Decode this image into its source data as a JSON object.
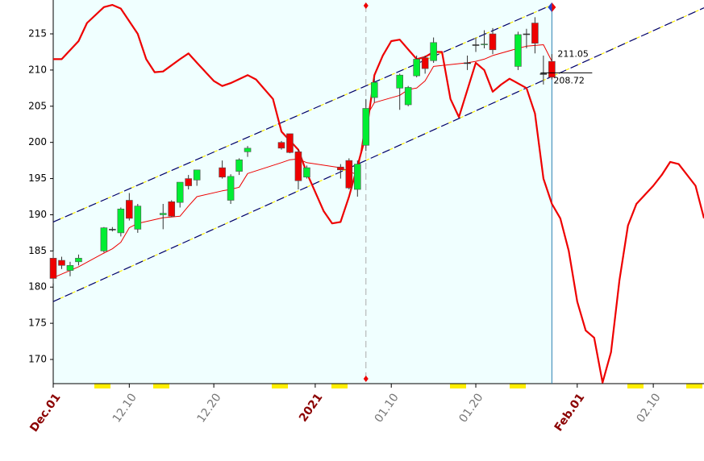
{
  "chart_data": {
    "type": "candlestick",
    "x": [
      "2020-12-01",
      "2020-12-02",
      "2020-12-03",
      "2020-12-04",
      "2020-12-07",
      "2020-12-08",
      "2020-12-09",
      "2020-12-10",
      "2020-12-11",
      "2020-12-14",
      "2020-12-15",
      "2020-12-16",
      "2020-12-17",
      "2020-12-18",
      "2020-12-21",
      "2020-12-22",
      "2020-12-23",
      "2020-12-24",
      "2020-12-28",
      "2020-12-29",
      "2020-12-30",
      "2020-12-31",
      "2021-01-04",
      "2021-01-05",
      "2021-01-06",
      "2021-01-07",
      "2021-01-08",
      "2021-01-11",
      "2021-01-12",
      "2021-01-13",
      "2021-01-14",
      "2021-01-15",
      "2021-01-19",
      "2021-01-20",
      "2021-01-21",
      "2021-01-22",
      "2021-01-25",
      "2021-01-26",
      "2021-01-27",
      "2021-01-28",
      "2021-01-29"
    ],
    "open": [
      184,
      183.7,
      182.3,
      183.5,
      185,
      188,
      187.5,
      192,
      188,
      190,
      191.8,
      191.7,
      195,
      194.8,
      196.5,
      192,
      196,
      198.7,
      200,
      201.2,
      198.7,
      195.2,
      196.6,
      197.5,
      193.5,
      199.6,
      206.2,
      207.5,
      205.2,
      209.2,
      211.7,
      211.3,
      211,
      213.5,
      213.5,
      215,
      210.5,
      215,
      216.5,
      209.5,
      211.2
    ],
    "high": [
      185,
      184.2,
      183.5,
      184.5,
      188.3,
      188.3,
      191,
      193,
      191.5,
      191.5,
      192,
      194.5,
      195.5,
      196.2,
      197.5,
      195.6,
      197.8,
      199.5,
      200.2,
      201.2,
      199,
      196.8,
      197,
      197.8,
      197.5,
      206,
      208.8,
      209.5,
      207.8,
      212,
      212,
      214.5,
      212,
      214.5,
      215.5,
      215.8,
      215.3,
      215.7,
      217.3,
      212,
      212.2
    ],
    "low": [
      180.5,
      182.5,
      181.5,
      183,
      184.8,
      187.7,
      187,
      189.2,
      187.5,
      188,
      189.7,
      191,
      193.5,
      194,
      195,
      191.5,
      195.5,
      198,
      199,
      198.5,
      193.5,
      195,
      195,
      193.5,
      192.5,
      198.8,
      205.5,
      204.5,
      205,
      209,
      209.5,
      211,
      210,
      212.5,
      213,
      212.2,
      210,
      213,
      212.3,
      208,
      208.7
    ],
    "close": [
      181.2,
      183,
      183,
      184,
      188.2,
      188,
      190.8,
      189.5,
      191.2,
      190.2,
      189.8,
      194.5,
      194,
      196.2,
      195.2,
      195.3,
      197.6,
      199.2,
      199.2,
      198.6,
      194.7,
      196.5,
      196.2,
      193.7,
      197,
      204.7,
      208.3,
      209.3,
      207.6,
      211.5,
      210.2,
      213.8,
      211,
      213.5,
      213.6,
      212.8,
      214.9,
      215,
      213.7,
      209.5,
      209
    ],
    "up_color": "#00ee33",
    "down_color": "#ee0000",
    "lines": [
      {
        "color": "#ee0000",
        "width": 1,
        "x": [
          "2020-12-01",
          "2020-12-02",
          "2020-12-03",
          "2020-12-04",
          "2020-12-07",
          "2020-12-08",
          "2020-12-09",
          "2020-12-10",
          "2020-12-11",
          "2020-12-14",
          "2020-12-15",
          "2020-12-16",
          "2020-12-17",
          "2020-12-18",
          "2020-12-21",
          "2020-12-22",
          "2020-12-23",
          "2020-12-24",
          "2020-12-28",
          "2020-12-29",
          "2020-12-30",
          "2020-12-31",
          "2021-01-04",
          "2021-01-05",
          "2021-01-06",
          "2021-01-07",
          "2021-01-08",
          "2021-01-11",
          "2021-01-12",
          "2021-01-13",
          "2021-01-14",
          "2021-01-15",
          "2021-01-19",
          "2021-01-20",
          "2021-01-21",
          "2021-01-22",
          "2021-01-25",
          "2021-01-26",
          "2021-01-27",
          "2021-01-28",
          "2021-01-29"
        ],
        "values": [
          181.3,
          181.8,
          182.3,
          182.8,
          184.7,
          185.3,
          186.2,
          188.2,
          188.8,
          189.6,
          189.7,
          189.8,
          191.2,
          192.5,
          193.3,
          193.5,
          193.8,
          195.7,
          197.2,
          197.6,
          197.7,
          197.2,
          196.5,
          196,
          195.5,
          203.5,
          205.5,
          206.5,
          207.3,
          207.5,
          208.5,
          210.5,
          211,
          211.2,
          211.5,
          212,
          213,
          213.3,
          213.4,
          213.5,
          211.2
        ]
      },
      {
        "color": "#ee0000",
        "width": 2.2,
        "x": [
          "2020-12-01",
          "2020-12-02",
          "2020-12-04",
          "2020-12-05",
          "2020-12-07",
          "2020-12-08",
          "2020-12-09",
          "2020-12-11",
          "2020-12-12",
          "2020-12-13",
          "2020-12-14",
          "2020-12-16",
          "2020-12-17",
          "2020-12-18",
          "2020-12-20",
          "2020-12-21",
          "2020-12-22",
          "2020-12-24",
          "2020-12-25",
          "2020-12-27",
          "2020-12-28",
          "2020-12-30",
          "2020-12-31",
          "2021-01-02",
          "2021-01-03",
          "2021-01-04",
          "2021-01-05",
          "2021-01-07",
          "2021-01-08",
          "2021-01-09",
          "2021-01-10",
          "2021-01-11",
          "2021-01-13",
          "2021-01-14",
          "2021-01-15",
          "2021-01-16",
          "2021-01-17",
          "2021-01-18",
          "2021-01-20",
          "2021-01-21",
          "2021-01-22",
          "2021-01-23",
          "2021-01-24",
          "2021-01-26",
          "2021-01-27",
          "2021-01-28",
          "2021-01-29",
          "2021-01-30",
          "2021-01-31",
          "2021-02-01",
          "2021-02-02",
          "2021-02-03",
          "2021-02-04",
          "2021-02-05",
          "2021-02-06",
          "2021-02-07",
          "2021-02-08",
          "2021-02-10",
          "2021-02-11",
          "2021-02-12",
          "2021-02-13",
          "2021-02-15",
          "2021-02-16"
        ],
        "values": [
          211.5,
          211.5,
          214,
          216.5,
          218.7,
          219,
          218.5,
          215,
          211.5,
          209.7,
          209.8,
          211.5,
          212.3,
          211,
          208.5,
          207.8,
          208.2,
          209.3,
          208.7,
          206,
          201.5,
          199,
          195.8,
          190.5,
          188.8,
          189,
          192.5,
          201,
          209.3,
          212,
          214,
          214.2,
          211.5,
          211.8,
          212.5,
          212.5,
          206,
          203.5,
          211,
          210,
          207,
          208,
          208.8,
          207.5,
          204,
          195,
          191.5,
          189.5,
          185,
          178,
          174,
          173,
          166.8,
          171,
          181,
          188.5,
          191.5,
          194,
          195.5,
          197.3,
          197,
          194,
          189.5
        ]
      }
    ],
    "channels": [
      {
        "x": [
          "2020-12-01",
          "2021-01-29"
        ],
        "values": [
          189,
          219
        ]
      },
      {
        "x": [
          "2020-12-01",
          "2021-02-16"
        ],
        "values": [
          178,
          218.6
        ]
      }
    ],
    "marker_x": "2021-01-07",
    "cursor_x": "2021-01-29",
    "price_labels": [
      211.05,
      208.72
    ],
    "xlim": [
      "2020-12-01",
      "2021-02-16"
    ],
    "xticks": [
      {
        "value": "2020-12-01",
        "label": "Dec.01",
        "color": "#8b0000"
      },
      {
        "value": "2020-12-10",
        "label": "12.10",
        "color": "#777777"
      },
      {
        "value": "2020-12-20",
        "label": "12.20",
        "color": "#777777"
      },
      {
        "value": "2021-01-01",
        "label": "2021",
        "color": "#8b0000"
      },
      {
        "value": "2021-01-10",
        "label": "01.10",
        "color": "#777777"
      },
      {
        "value": "2021-01-20",
        "label": "01.20",
        "color": "#777777"
      },
      {
        "value": "2021-02-01",
        "label": "Feb.01",
        "color": "#8b0000"
      },
      {
        "value": "2021-02-10",
        "label": "02.10",
        "color": "#777777"
      }
    ],
    "ylim": [
      166.66,
      219.68
    ],
    "yticks": [
      170,
      175,
      180,
      185,
      190,
      195,
      200,
      205,
      210,
      215
    ]
  }
}
